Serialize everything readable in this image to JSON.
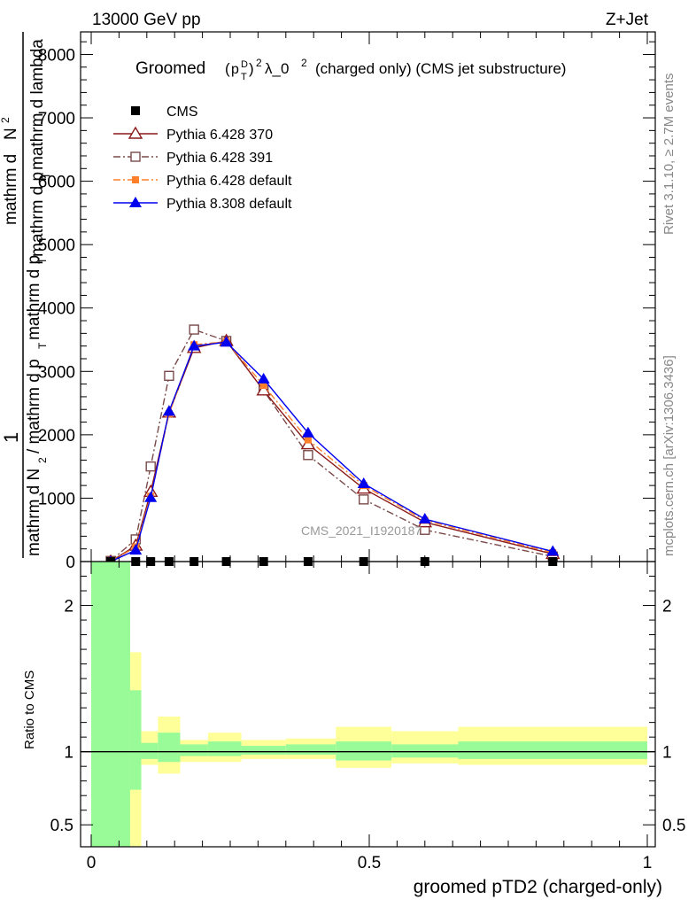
{
  "header": {
    "left": "13000 GeV pp",
    "right": "Z+Jet"
  },
  "side_labels": {
    "rivet": "Rivet 3.1.10, ≥ 2.7M events",
    "mcplots": "mcplots.cern.ch [arXiv:1306.3436]"
  },
  "watermark": "CMS_2021_I1920187",
  "colors": {
    "cms": "#000000",
    "p370": "#8b1a1a",
    "p391": "#7a4a4a",
    "p6def": "#ff7f2a",
    "p8def": "#0000ee",
    "band_inner": "#98fb98",
    "band_outer": "#ffff99"
  },
  "chart_data": [
    {
      "type": "line",
      "title": "Groomed (p_T^D)^2 λ_0^2  (charged only) (CMS jet substructure)",
      "title_parts": {
        "a": "Groomed",
        "b": "p",
        "c": "D",
        "d": "T",
        "e": "2",
        "f": "λ_0",
        "g": "2",
        "h": "(charged only) (CMS jet substructure)"
      },
      "ylabel_parts": {
        "one": "1",
        "denominator": "mathrm d N_{₂}/mathrm d p_{T}mathrm d p_{T}",
        "numerator": "mathrm d²N",
        "numerator_extra": "mathrm d p_T mathrm d lambda"
      },
      "ylabel_display": {
        "num_a": "mathrm d",
        "num_b": "N",
        "num_c": "2",
        "num_d": "mathrm d p",
        "num_e": "T",
        "num_f": "mathrm d lambda",
        "den_a": "mathrm d N",
        "den_b": "2",
        "den_c": "/ mathrm d p",
        "den_d": "T",
        "den_e": "mathrm d p",
        "den_f": "T"
      },
      "xlim": [
        -0.0,
        1.0
      ],
      "ylim": [
        0,
        8300
      ],
      "yticks": [
        0,
        1000,
        2000,
        3000,
        4000,
        5000,
        6000,
        7000,
        8000
      ],
      "ytick_labels": [
        "0",
        "1000",
        "2000",
        "3000",
        "4000",
        "5000",
        "6000",
        "7000",
        "8000"
      ],
      "legend_position": "top-left",
      "series": [
        {
          "name": "CMS",
          "style": "data",
          "x": [
            0.035,
            0.08,
            0.107,
            0.14,
            0.185,
            0.243,
            0.31,
            0.39,
            0.49,
            0.6,
            0.83
          ],
          "y": [
            0,
            0,
            0,
            0,
            0,
            0,
            0,
            0,
            0,
            0,
            0
          ]
        },
        {
          "name": "Pythia 6.428 370",
          "style": "p370",
          "x": [
            0.035,
            0.08,
            0.107,
            0.14,
            0.185,
            0.243,
            0.31,
            0.39,
            0.49,
            0.6,
            0.83
          ],
          "y": [
            0,
            250,
            1100,
            2350,
            3370,
            3480,
            2700,
            1850,
            1150,
            620,
            120
          ]
        },
        {
          "name": "Pythia 6.428 391",
          "style": "p391",
          "x": [
            0.035,
            0.08,
            0.107,
            0.14,
            0.185,
            0.243,
            0.31,
            0.39,
            0.49,
            0.6,
            0.83
          ],
          "y": [
            10,
            350,
            1500,
            2930,
            3660,
            3480,
            2700,
            1680,
            980,
            500,
            80
          ]
        },
        {
          "name": "Pythia 6.428 default",
          "style": "p6def",
          "x": [
            0.035,
            0.08,
            0.107,
            0.14,
            0.185,
            0.243,
            0.31,
            0.39,
            0.49,
            0.6,
            0.83
          ],
          "y": [
            0,
            230,
            1030,
            2330,
            3420,
            3470,
            2780,
            1920,
            1200,
            650,
            140
          ]
        },
        {
          "name": "Pythia 8.308 default",
          "style": "p8def",
          "x": [
            0.035,
            0.08,
            0.107,
            0.14,
            0.185,
            0.243,
            0.31,
            0.39,
            0.49,
            0.6,
            0.83
          ],
          "y": [
            0,
            180,
            1010,
            2370,
            3400,
            3460,
            2880,
            2030,
            1230,
            670,
            160
          ]
        }
      ]
    },
    {
      "type": "area",
      "ylabel": "Ratio to CMS",
      "xlabel": "groomed pTD2 (charged-only)",
      "xlim": [
        -0.0,
        1.0
      ],
      "ylim": [
        0.35,
        2.3
      ],
      "yticks": [
        0.5,
        1,
        2
      ],
      "ytick_labels": [
        "0.5",
        "1",
        "2"
      ],
      "xticks": [
        0,
        0.5,
        1
      ],
      "xtick_labels": [
        "0",
        "0.5",
        "1"
      ],
      "bins": [
        {
          "lo": 0.0,
          "hi": 0.07,
          "inner": [
            0.35,
            2.3
          ],
          "outer": [
            0.35,
            2.3
          ]
        },
        {
          "lo": 0.07,
          "hi": 0.09,
          "inner": [
            0.74,
            1.42
          ],
          "outer": [
            0.35,
            1.68
          ]
        },
        {
          "lo": 0.09,
          "hi": 0.12,
          "inner": [
            0.95,
            1.06
          ],
          "outer": [
            0.91,
            1.14
          ]
        },
        {
          "lo": 0.12,
          "hi": 0.16,
          "inner": [
            0.93,
            1.13
          ],
          "outer": [
            0.85,
            1.24
          ]
        },
        {
          "lo": 0.16,
          "hi": 0.21,
          "inner": [
            0.97,
            1.05
          ],
          "outer": [
            0.93,
            1.08
          ]
        },
        {
          "lo": 0.21,
          "hi": 0.27,
          "inner": [
            0.97,
            1.07
          ],
          "outer": [
            0.93,
            1.13
          ]
        },
        {
          "lo": 0.27,
          "hi": 0.35,
          "inner": [
            0.98,
            1.04
          ],
          "outer": [
            0.95,
            1.08
          ]
        },
        {
          "lo": 0.35,
          "hi": 0.44,
          "inner": [
            0.98,
            1.05
          ],
          "outer": [
            0.95,
            1.09
          ]
        },
        {
          "lo": 0.44,
          "hi": 0.54,
          "inner": [
            0.94,
            1.07
          ],
          "outer": [
            0.89,
            1.17
          ]
        },
        {
          "lo": 0.54,
          "hi": 0.66,
          "inner": [
            0.96,
            1.05
          ],
          "outer": [
            0.92,
            1.14
          ]
        },
        {
          "lo": 0.66,
          "hi": 1.0,
          "inner": [
            0.95,
            1.07
          ],
          "outer": [
            0.91,
            1.17
          ]
        }
      ],
      "reference_line": 1
    }
  ]
}
